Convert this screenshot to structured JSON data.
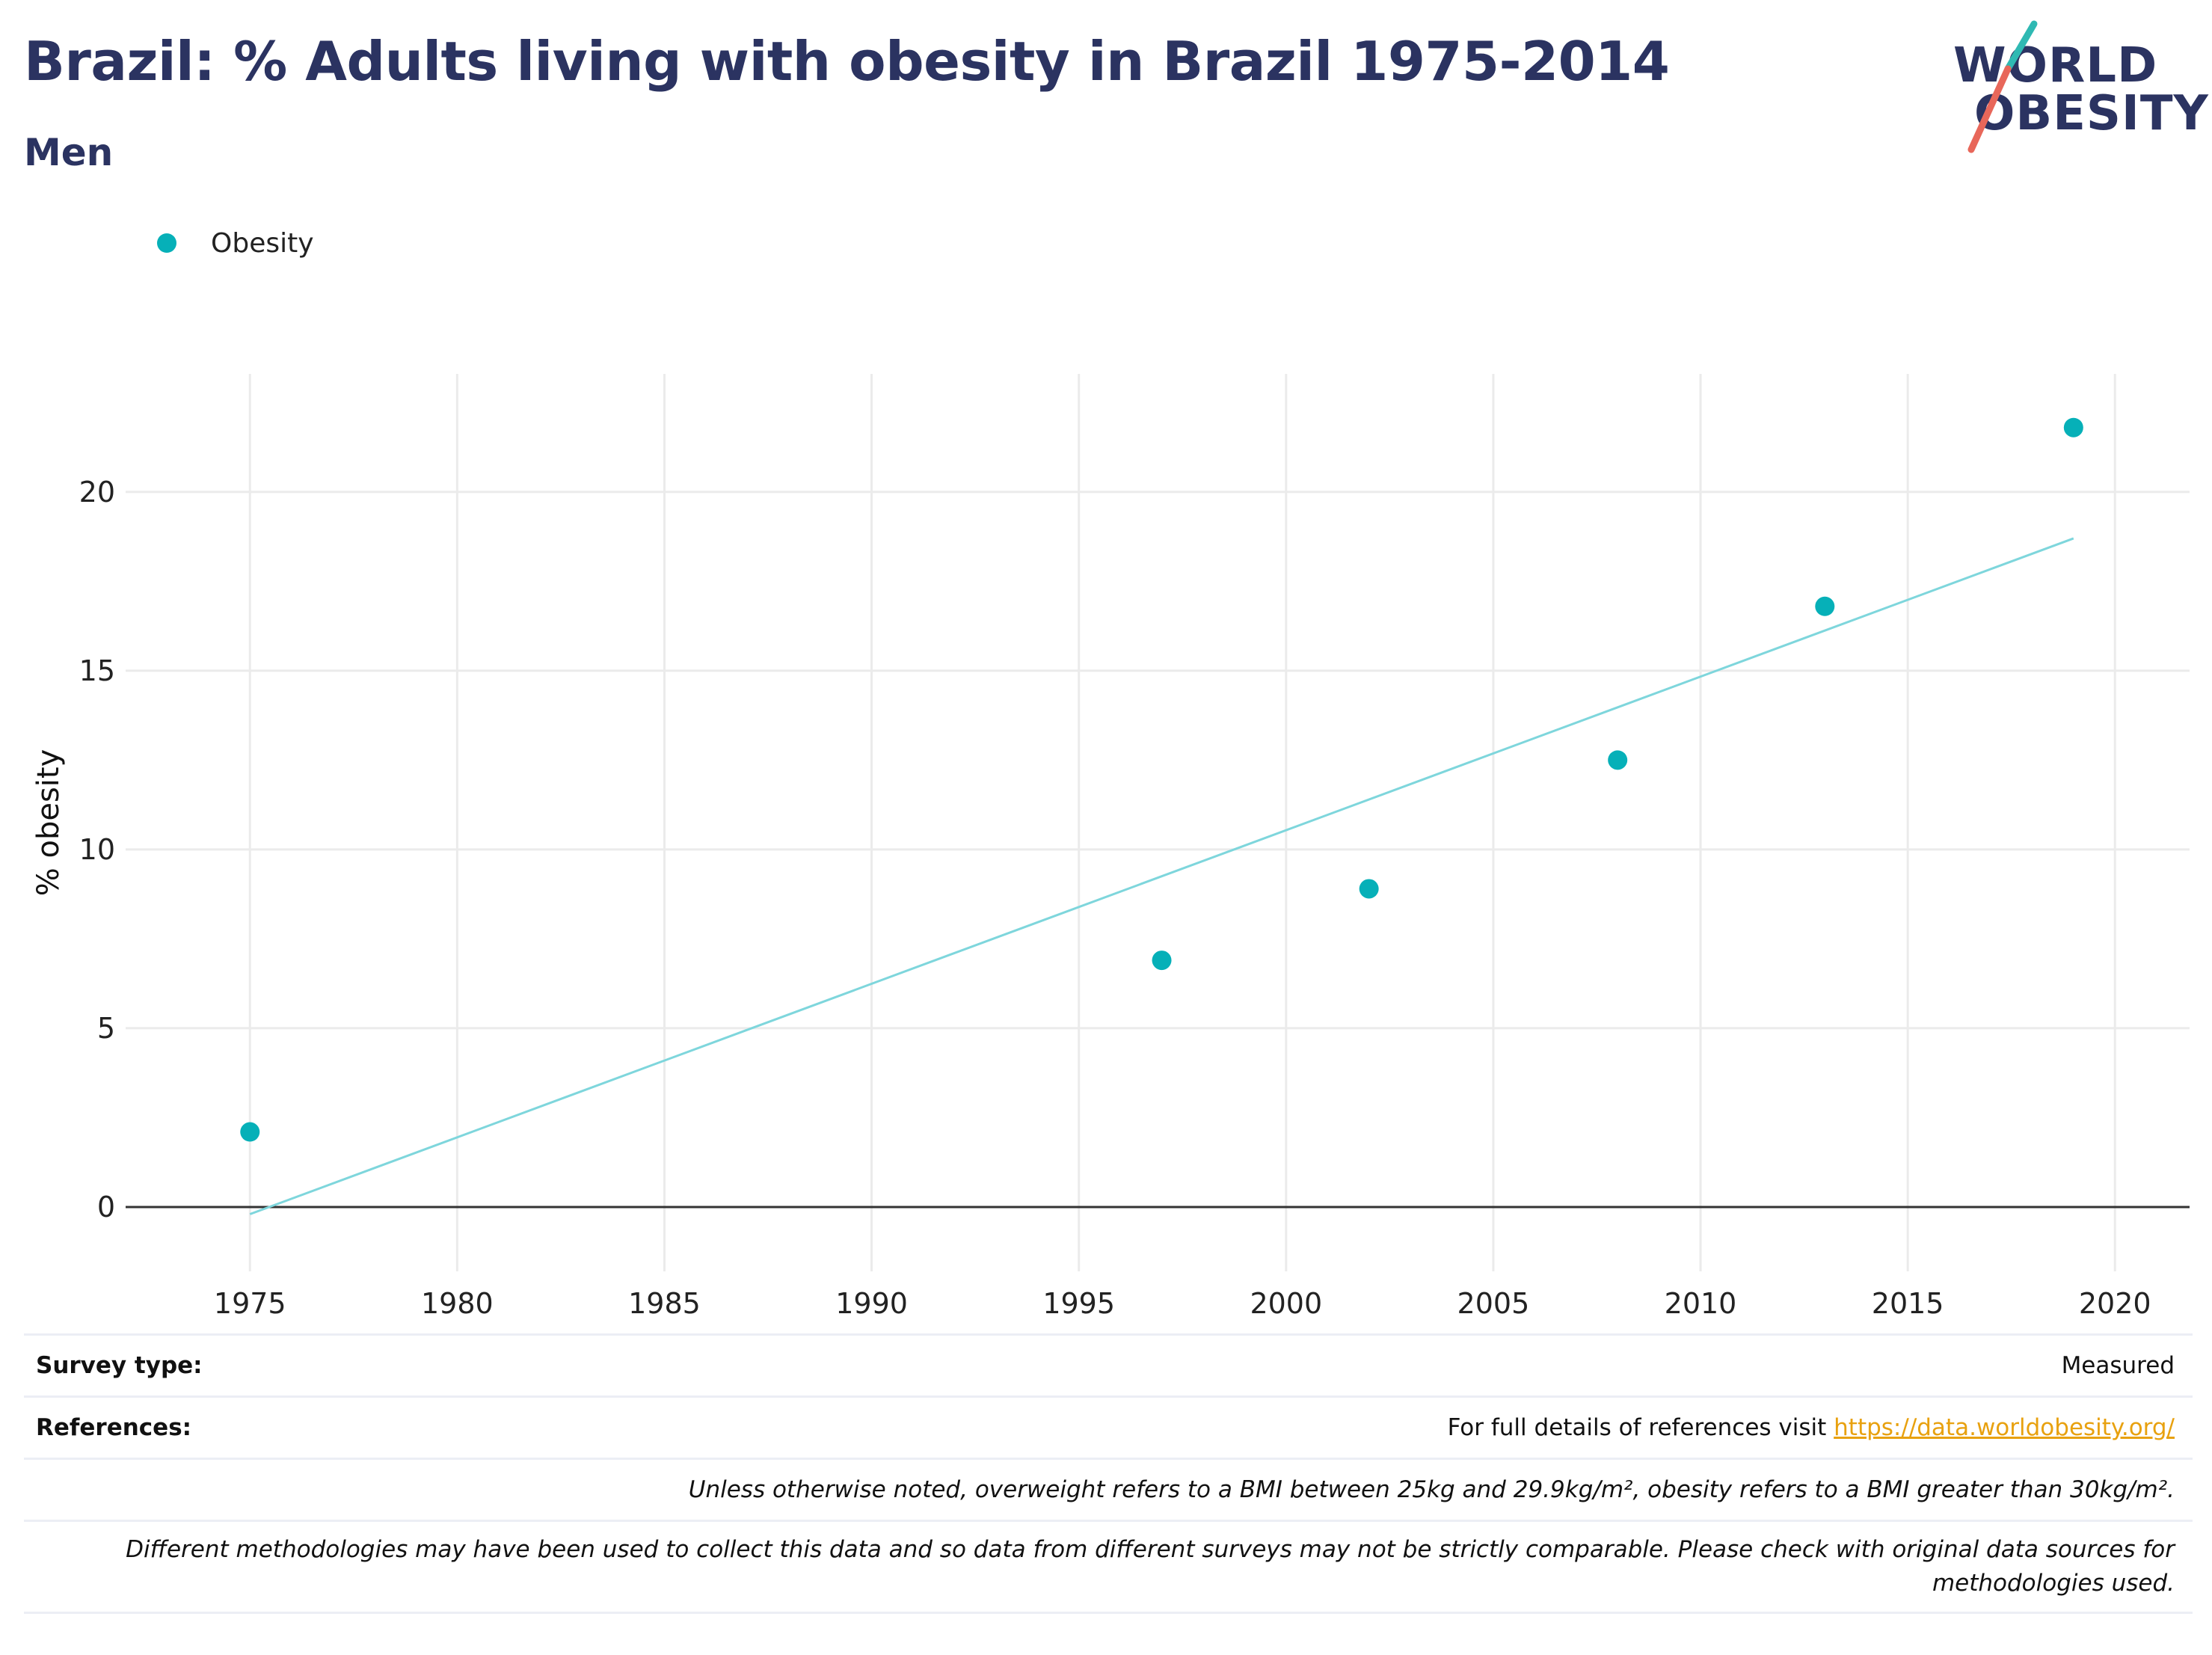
{
  "header": {
    "title": "Brazil: % Adults living with obesity in Brazil 1975-2014",
    "subtitle": "Men"
  },
  "logo": {
    "line1": "WORLD",
    "line2": "OBESITY",
    "slash_top_color": "#2fb9b3",
    "slash_bottom_color": "#e8675a"
  },
  "legend": {
    "label": "Obesity"
  },
  "colors": {
    "marker": "#06b0b8",
    "trend": "#7ed6dc",
    "grid": "#ebebeb",
    "zero_line": "#333333",
    "title": "#2b3361",
    "link": "#e8a10f"
  },
  "chart_data": {
    "type": "scatter",
    "title": "Brazil: % Adults living with obesity in Brazil 1975-2014",
    "subtitle": "Men",
    "xlabel": "",
    "ylabel": "% obesity",
    "xlim": [
      1972,
      2021.8
    ],
    "ylim": [
      -1.8,
      23.3
    ],
    "x_ticks": [
      1975,
      1980,
      1985,
      1990,
      1995,
      2000,
      2005,
      2010,
      2015,
      2020
    ],
    "y_ticks": [
      0,
      5,
      10,
      15,
      20
    ],
    "grid": true,
    "legend_position": "top-left",
    "series": [
      {
        "name": "Obesity",
        "x": [
          1975,
          1997,
          2002,
          2008,
          2013,
          2019
        ],
        "y": [
          2.1,
          6.9,
          8.9,
          12.5,
          16.8,
          21.8
        ]
      }
    ],
    "trendline": {
      "x": [
        1975,
        2019
      ],
      "y": [
        -0.2,
        18.7
      ]
    }
  },
  "footer": {
    "survey_type_label": "Survey type:",
    "survey_type_value": "Measured",
    "references_label": "References:",
    "references_text": "For full details of references visit",
    "references_link": "https://data.worldobesity.org/",
    "note1": "Unless otherwise noted, overweight refers to a BMI between 25kg and 29.9kg/m², obesity refers to a BMI greater than 30kg/m².",
    "note2_line1": "Different methodologies may have been used to collect this data and so data from different surveys may not be strictly comparable. Please check with original data sources for",
    "note2_line2": "methodologies used."
  }
}
